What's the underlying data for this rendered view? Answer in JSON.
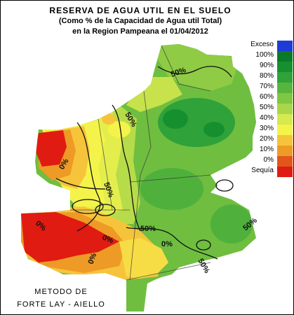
{
  "title": {
    "line1": "RESERVA DE AGUA UTIL EN EL SUELO",
    "line2": "(Como % de la Capacidad de Agua util Total)",
    "line3": "en la Region Pampeana el 01/04/2012"
  },
  "legend": [
    {
      "label": "Exceso",
      "color": "#1f3bd6"
    },
    {
      "label": "100%",
      "color": "#0a7a2a"
    },
    {
      "label": "90%",
      "color": "#16902f"
    },
    {
      "label": "80%",
      "color": "#2fa23a"
    },
    {
      "label": "70%",
      "color": "#57b53e"
    },
    {
      "label": "60%",
      "color": "#7fc642"
    },
    {
      "label": "50%",
      "color": "#a9d64a"
    },
    {
      "label": "40%",
      "color": "#d6e94e"
    },
    {
      "label": "30%",
      "color": "#f4f34a"
    },
    {
      "label": "20%",
      "color": "#f6c43a"
    },
    {
      "label": "10%",
      "color": "#ee9a26"
    },
    {
      "label": "0%",
      "color": "#e2561b"
    },
    {
      "label": "Sequía",
      "color": "#e01b12"
    }
  ],
  "contour_labels": [
    "50%",
    "50%",
    "50%",
    "50%",
    "50%",
    "50%",
    "0%",
    "0%",
    "0%",
    "0%",
    "0%"
  ],
  "method": {
    "line1": "METODO DE",
    "line2": "FORTE LAY - AIELLO"
  }
}
